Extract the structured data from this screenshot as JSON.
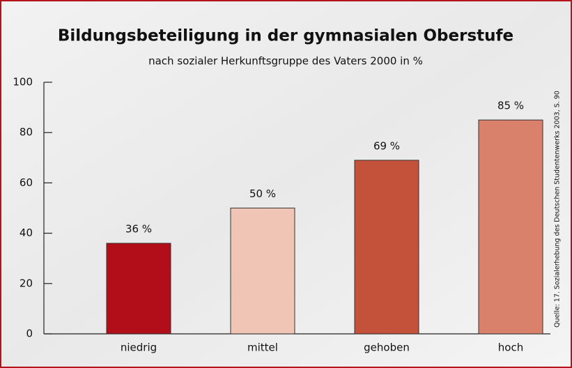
{
  "chart_data": {
    "type": "bar",
    "title": "Bildungsbeteiligung in der gymnasialen Oberstufe",
    "subtitle": "nach sozialer Herkunftsgruppe des Vaters 2000 in %",
    "source": "Quelle: 17. Sozialerhebung des Deutschen Studentenwerks 2003, S. 90",
    "categories": [
      "niedrig",
      "mittel",
      "gehoben",
      "hoch"
    ],
    "values": [
      36,
      50,
      69,
      85
    ],
    "value_labels": [
      "36 %",
      "50 %",
      "69 %",
      "85 %"
    ],
    "colors": [
      "#b20e19",
      "#f0c5b5",
      "#c4513a",
      "#d9816a"
    ],
    "ylim": [
      0,
      100
    ],
    "yticks": [
      0,
      20,
      40,
      60,
      80,
      100
    ],
    "grid": false
  }
}
